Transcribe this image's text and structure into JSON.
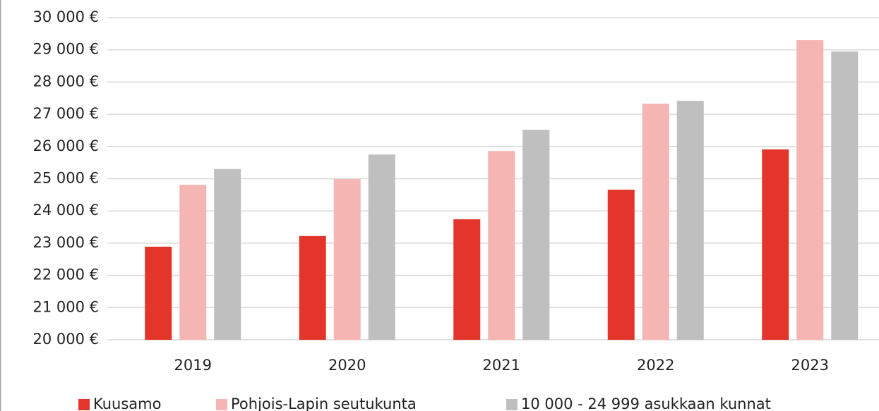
{
  "chart_data": {
    "type": "bar",
    "categories": [
      "2019",
      "2020",
      "2021",
      "2022",
      "2023"
    ],
    "series": [
      {
        "name": "Kuusamo",
        "color": "#e4352b",
        "values": [
          22890,
          23220,
          23740,
          24660,
          25910
        ]
      },
      {
        "name": "Pohjois-Lapin seutukunta",
        "color": "#f5b5b3",
        "values": [
          24810,
          24990,
          25860,
          27330,
          29300
        ]
      },
      {
        "name": "10 000 - 24 999 asukkaan kunnat",
        "color": "#bfbfbf",
        "values": [
          25300,
          25750,
          26520,
          27420,
          28950
        ]
      }
    ],
    "ylim": [
      20000,
      30000
    ],
    "yticks": [
      {
        "value": 20000,
        "label": "20 000 €"
      },
      {
        "value": 21000,
        "label": "21 000 €"
      },
      {
        "value": 22000,
        "label": "22 000 €"
      },
      {
        "value": 23000,
        "label": "23 000 €"
      },
      {
        "value": 24000,
        "label": "24 000 €"
      },
      {
        "value": 25000,
        "label": "25 000 €"
      },
      {
        "value": 26000,
        "label": "26 000 €"
      },
      {
        "value": 27000,
        "label": "27 000 €"
      },
      {
        "value": 28000,
        "label": "28 000 €"
      },
      {
        "value": 29000,
        "label": "29 000 €"
      },
      {
        "value": 30000,
        "label": "30 000 €"
      }
    ],
    "grid": true,
    "legend": "bottom"
  }
}
